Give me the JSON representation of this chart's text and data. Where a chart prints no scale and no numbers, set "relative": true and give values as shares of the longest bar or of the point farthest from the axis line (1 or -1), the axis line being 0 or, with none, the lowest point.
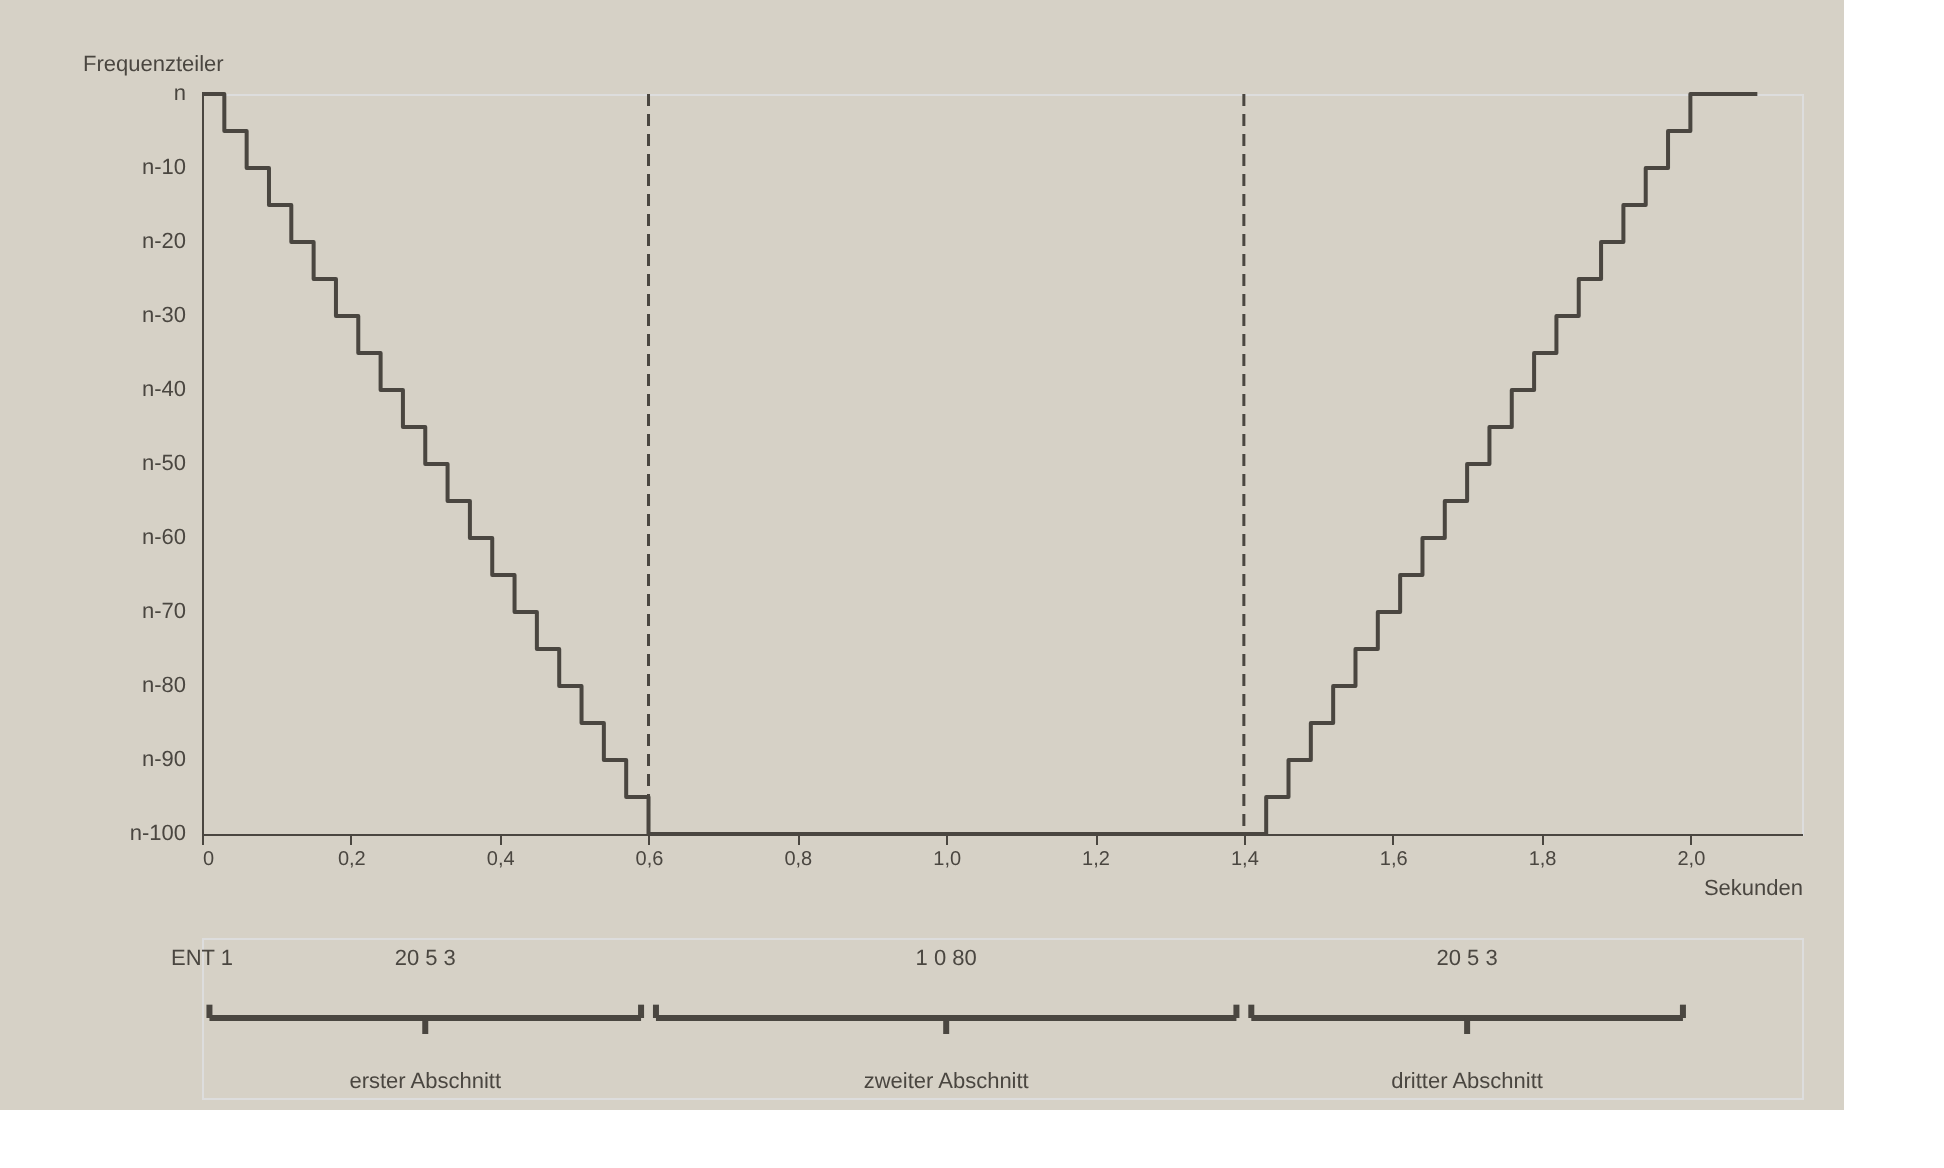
{
  "chart_data": {
    "type": "step",
    "xlabel": "Sekunden",
    "ylabel": "Frequenzteiler",
    "relative": true,
    "x": [
      0,
      0.03,
      0.06,
      0.09,
      0.12,
      0.15,
      0.18,
      0.21,
      0.24,
      0.27,
      0.3,
      0.33,
      0.36,
      0.39,
      0.42,
      0.45,
      0.48,
      0.51,
      0.54,
      0.57,
      0.6,
      1.43,
      1.46,
      1.49,
      1.52,
      1.55,
      1.58,
      1.61,
      1.64,
      1.67,
      1.7,
      1.73,
      1.76,
      1.79,
      1.82,
      1.85,
      1.88,
      1.91,
      1.94,
      1.97,
      2.0,
      2.09
    ],
    "series": [
      {
        "color": "#4a4640",
        "values": [
          1,
          0.95,
          0.9,
          0.85,
          0.8,
          0.75,
          0.7,
          0.65,
          0.6,
          0.55,
          0.5,
          0.45,
          0.4,
          0.35,
          0.3,
          0.25,
          0.2,
          0.15,
          0.1,
          0.05,
          0,
          0.05,
          0.1,
          0.15,
          0.2,
          0.25,
          0.3,
          0.35,
          0.4,
          0.45,
          0.5,
          0.55,
          0.6,
          0.65,
          0.7,
          0.75,
          0.8,
          0.85,
          0.9,
          0.95,
          1,
          1
        ]
      }
    ],
    "xlim": [
      0,
      2.15
    ],
    "xticks": [
      {
        "value": 0,
        "label": "0"
      },
      {
        "value": 0.2,
        "label": "0,2"
      },
      {
        "value": 0.4,
        "label": "0,4"
      },
      {
        "value": 0.6,
        "label": "0,6"
      },
      {
        "value": 0.8,
        "label": "0,8"
      },
      {
        "value": 1.0,
        "label": "1,0"
      },
      {
        "value": 1.2,
        "label": "1,2"
      },
      {
        "value": 1.4,
        "label": "1,4"
      },
      {
        "value": 1.6,
        "label": "1,6"
      },
      {
        "value": 1.8,
        "label": "1,8"
      },
      {
        "value": 2.0,
        "label": "2,0"
      }
    ],
    "ref_lines": [
      {
        "axis": "x",
        "value": 0.6,
        "label": null,
        "line_style": "dashed",
        "color": "#4a4640"
      },
      {
        "axis": "x",
        "value": 1.4,
        "label": null,
        "line_style": "dashed",
        "color": "#4a4640"
      }
    ],
    "annotations": [
      "ENT 1",
      "20 5 3",
      "1 0 80",
      "20 5 3",
      "erster Abschnitt",
      "zweiter Abschnitt",
      "dritter Abschnitt",
      "n",
      "n-10",
      "n-20",
      "n-30",
      "n-40",
      "n-50",
      "n-60",
      "n-70",
      "n-80",
      "n-90",
      "n-100"
    ],
    "grid": false,
    "marker": "none",
    "line_style": "solid"
  }
}
